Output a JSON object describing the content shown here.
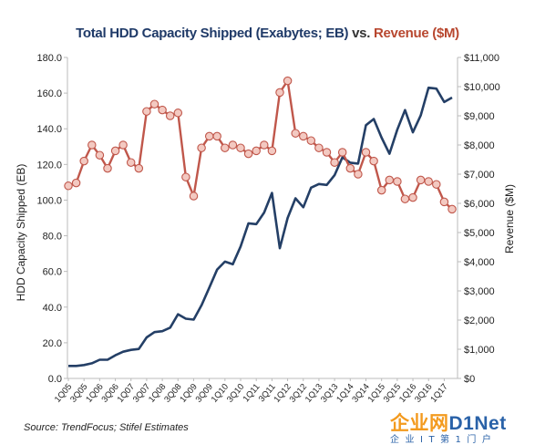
{
  "chart_data": {
    "type": "line",
    "title": {
      "part1": "Total HDD Capacity  Shipped (Exabytes; EB)",
      "part2": " vs. ",
      "part3": "Revenue ($M)"
    },
    "ylabel_left": "HDD Capacity Shipped (EB)",
    "ylabel_right": "Revenue  ($M)",
    "ylim_left": [
      0,
      180
    ],
    "ylim_right": [
      0,
      11000
    ],
    "yticks_left": [
      "0.0",
      "20.0",
      "40.0",
      "60.0",
      "80.0",
      "100.0",
      "120.0",
      "140.0",
      "160.0",
      "180.0"
    ],
    "yticks_right": [
      "$0",
      "$1,000",
      "$2,000",
      "$3,000",
      "$4,000",
      "$5,000",
      "$6,000",
      "$7,000",
      "$8,000",
      "$9,000",
      "$10,000",
      "$11,000"
    ],
    "xtick_labels": [
      "1Q05",
      "3Q05",
      "1Q06",
      "3Q06",
      "1Q07",
      "3Q07",
      "1Q08",
      "3Q08",
      "1Q09",
      "3Q09",
      "1Q10",
      "3Q10",
      "1Q11",
      "3Q11",
      "1Q12",
      "3Q12",
      "1Q13",
      "3Q13",
      "1Q14",
      "3Q14",
      "1Q15",
      "3Q15",
      "1Q16",
      "3Q16",
      "1Q17"
    ],
    "grid": false,
    "series": [
      {
        "name": "Total HDD Capacity Shipped (Exabytes; EB)",
        "axis": "left",
        "color": "#243f66",
        "values": [
          7,
          7,
          7.5,
          8.5,
          10.5,
          10.5,
          13,
          15,
          16,
          16.5,
          23,
          26,
          26.5,
          28.5,
          36,
          33.5,
          33,
          41,
          51,
          61,
          65.5,
          64,
          74,
          87,
          86.5,
          93,
          104,
          73,
          90,
          101,
          96,
          107,
          109,
          108.5,
          114,
          124,
          121,
          120.5,
          142,
          145.5,
          135,
          126,
          139.5,
          150.5,
          138,
          147.5,
          163,
          162.5,
          155,
          157.5
        ]
      },
      {
        "name": "Revenue ($M)",
        "axis": "right",
        "color": "#c0574b",
        "values": [
          6600,
          6700,
          7450,
          8000,
          7650,
          7200,
          7800,
          8000,
          7400,
          7200,
          9150,
          9400,
          9200,
          9000,
          9100,
          6900,
          6250,
          7900,
          8300,
          8300,
          7900,
          8000,
          7900,
          7700,
          7800,
          8000,
          7800,
          9800,
          10200,
          8400,
          8300,
          8150,
          7900,
          7750,
          7400,
          7750,
          7200,
          7000,
          7750,
          7450,
          6450,
          6800,
          6750,
          6150,
          6200,
          6800,
          6750,
          6650,
          6050,
          5800
        ]
      }
    ],
    "source": "Source: TrendFocus; Stifel Estimates"
  },
  "watermark": {
    "brand_cn": "企业网",
    "brand_en": "D1Net",
    "sub": "企业IT第1门户"
  }
}
